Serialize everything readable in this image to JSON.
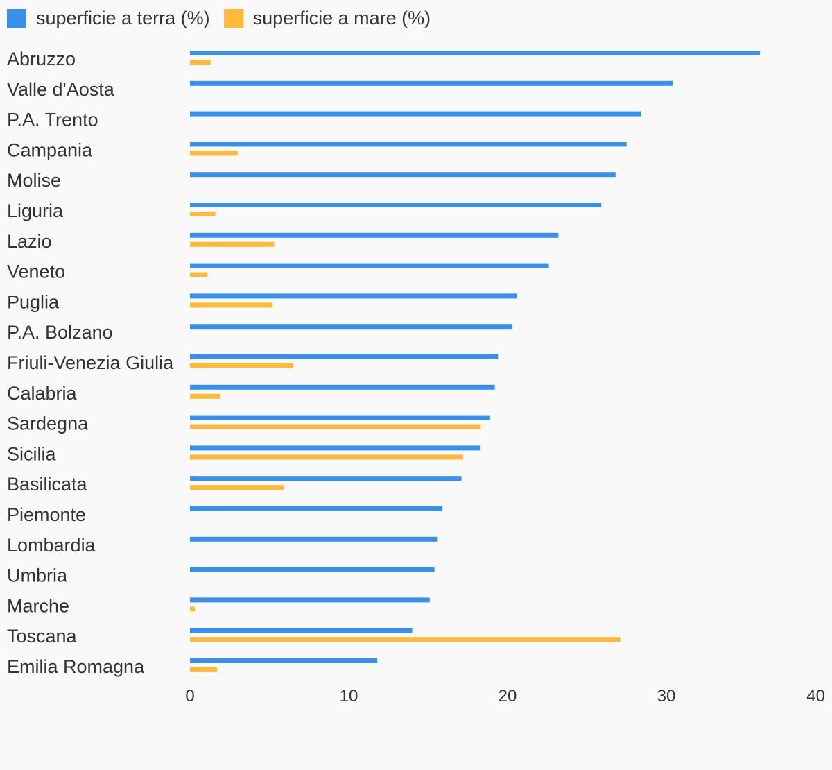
{
  "chart_data": {
    "type": "bar",
    "orientation": "horizontal",
    "categories": [
      "Abruzzo",
      "Valle d'Aosta",
      "P.A. Trento",
      "Campania",
      "Molise",
      "Liguria",
      "Lazio",
      "Veneto",
      "Puglia",
      "P.A. Bolzano",
      "Friuli-Venezia Giulia",
      "Calabria",
      "Sardegna",
      "Sicilia",
      "Basilicata",
      "Piemonte",
      "Lombardia",
      "Umbria",
      "Marche",
      "Toscana",
      "Emilia Romagna"
    ],
    "series": [
      {
        "name": "superficie a terra (%)",
        "color": "#3a8fe8",
        "values": [
          35.9,
          30.4,
          28.4,
          27.5,
          26.8,
          25.9,
          23.2,
          22.6,
          20.6,
          20.3,
          19.4,
          19.2,
          18.9,
          18.3,
          17.1,
          15.9,
          15.6,
          15.4,
          15.1,
          14.0,
          11.8
        ]
      },
      {
        "name": "superficie a mare (%)",
        "color": "#ffb93b",
        "values": [
          1.3,
          0,
          0,
          3.0,
          0,
          1.6,
          5.3,
          1.1,
          5.2,
          0,
          6.5,
          1.9,
          18.3,
          17.2,
          5.9,
          0,
          0,
          0,
          0.3,
          27.1,
          1.7
        ]
      }
    ],
    "xlim": [
      0,
      40
    ],
    "xticks": [
      0,
      10,
      20,
      30,
      40
    ],
    "legend": "top-left",
    "grid": false
  }
}
